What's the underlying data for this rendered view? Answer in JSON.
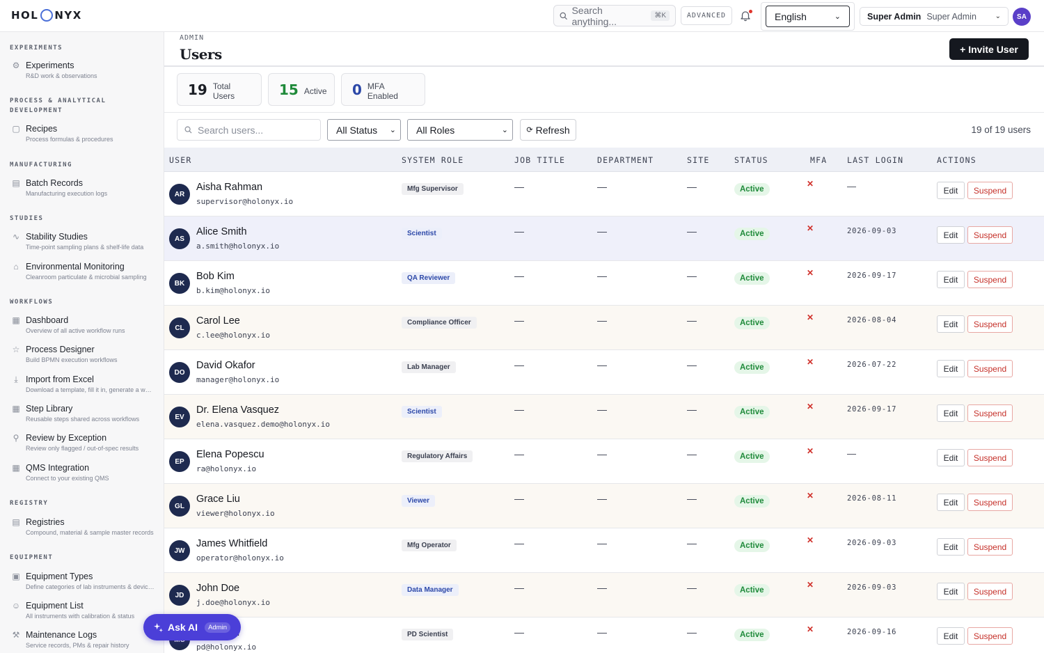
{
  "app": {
    "logo_left": "HOL",
    "logo_right": "NYX"
  },
  "header": {
    "search_placeholder": "Search anything...",
    "search_shortcut": "⌘K",
    "advanced_label": "ADVANCED",
    "language": "English",
    "user_name": "Super Admin",
    "user_role": "Super Admin",
    "avatar_initials": "SA"
  },
  "sidebar": {
    "sections": [
      {
        "title": "EXPERIMENTS",
        "items": [
          {
            "label": "Experiments",
            "desc": "R&D work & observations",
            "icon": "flask-icon"
          }
        ]
      },
      {
        "title": "PROCESS & ANALYTICAL DEVELOPMENT",
        "items": [
          {
            "label": "Recipes",
            "desc": "Process formulas & procedures",
            "icon": "document-icon"
          }
        ]
      },
      {
        "title": "MANUFACTURING",
        "items": [
          {
            "label": "Batch Records",
            "desc": "Manufacturing execution logs",
            "icon": "clipboard-icon"
          }
        ]
      },
      {
        "title": "STUDIES",
        "items": [
          {
            "label": "Stability Studies",
            "desc": "Time-point sampling plans & shelf-life data",
            "icon": "pulse-icon"
          },
          {
            "label": "Environmental Monitoring",
            "desc": "Cleanroom particulate & microbial sampling",
            "icon": "home-icon"
          }
        ]
      },
      {
        "title": "WORKFLOWS",
        "items": [
          {
            "label": "Dashboard",
            "desc": "Overview of all active workflow runs",
            "icon": "grid-icon"
          },
          {
            "label": "Process Designer",
            "desc": "Build BPMN execution workflows",
            "icon": "star-icon"
          },
          {
            "label": "Import from Excel",
            "desc": "Download a template, fill it in, generate a workflow",
            "icon": "download-icon"
          },
          {
            "label": "Step Library",
            "desc": "Reusable steps shared across workflows",
            "icon": "blocks-icon"
          },
          {
            "label": "Review by Exception",
            "desc": "Review only flagged / out-of-spec results",
            "icon": "magnifier-icon"
          },
          {
            "label": "QMS Integration",
            "desc": "Connect to your existing QMS",
            "icon": "grid-icon"
          }
        ]
      },
      {
        "title": "REGISTRY",
        "items": [
          {
            "label": "Registries",
            "desc": "Compound, material & sample master records",
            "icon": "database-icon"
          }
        ]
      },
      {
        "title": "EQUIPMENT",
        "items": [
          {
            "label": "Equipment Types",
            "desc": "Define categories of lab instruments & devices",
            "icon": "briefcase-icon"
          },
          {
            "label": "Equipment List",
            "desc": "All instruments with calibration & status",
            "icon": "person-icon"
          },
          {
            "label": "Maintenance Logs",
            "desc": "Service records, PMs & repair history",
            "icon": "wrench-icon"
          }
        ]
      }
    ]
  },
  "page": {
    "breadcrumb": "ADMIN",
    "title": "Users",
    "invite_label": "+ Invite User"
  },
  "stats": [
    {
      "value": "19",
      "label": "Total Users",
      "color": "#1a1d24"
    },
    {
      "value": "15",
      "label": "Active",
      "color": "#1f8a3a"
    },
    {
      "value": "0",
      "label": "MFA Enabled",
      "color": "#2c48a8"
    }
  ],
  "filters": {
    "search_placeholder": "Search users...",
    "status_value": "All Status",
    "roles_value": "All Roles",
    "refresh_label": "Refresh",
    "count_text": "19 of 19 users"
  },
  "table": {
    "columns": [
      "USER",
      "SYSTEM ROLE",
      "JOB TITLE",
      "DEPARTMENT",
      "SITE",
      "STATUS",
      "MFA",
      "LAST LOGIN",
      "ACTIONS"
    ],
    "rows": [
      {
        "initials": "AR",
        "name": "Aisha Rahman",
        "email": "supervisor@holonyx.io",
        "role": "Mfg Supervisor",
        "role_blue": false,
        "job": "—",
        "dept": "—",
        "site": "—",
        "status": "Active",
        "mfa": "✕",
        "last_login": "—",
        "edit": "Edit",
        "suspend": "Suspend"
      },
      {
        "initials": "AS",
        "name": "Alice Smith",
        "email": "a.smith@holonyx.io",
        "role": "Scientist",
        "role_blue": true,
        "job": "—",
        "dept": "—",
        "site": "—",
        "status": "Active",
        "mfa": "✕",
        "last_login": "2026-09-03",
        "edit": "Edit",
        "suspend": "Suspend"
      },
      {
        "initials": "BK",
        "name": "Bob Kim",
        "email": "b.kim@holonyx.io",
        "role": "QA Reviewer",
        "role_blue": true,
        "job": "—",
        "dept": "—",
        "site": "—",
        "status": "Active",
        "mfa": "✕",
        "last_login": "2026-09-17",
        "edit": "Edit",
        "suspend": "Suspend"
      },
      {
        "initials": "CL",
        "name": "Carol Lee",
        "email": "c.lee@holonyx.io",
        "role": "Compliance Officer",
        "role_blue": false,
        "job": "—",
        "dept": "—",
        "site": "—",
        "status": "Active",
        "mfa": "✕",
        "last_login": "2026-08-04",
        "edit": "Edit",
        "suspend": "Suspend"
      },
      {
        "initials": "DO",
        "name": "David Okafor",
        "email": "manager@holonyx.io",
        "role": "Lab Manager",
        "role_blue": false,
        "job": "—",
        "dept": "—",
        "site": "—",
        "status": "Active",
        "mfa": "✕",
        "last_login": "2026-07-22",
        "edit": "Edit",
        "suspend": "Suspend"
      },
      {
        "initials": "EV",
        "name": "Dr. Elena Vasquez",
        "email": "elena.vasquez.demo@holonyx.io",
        "role": "Scientist",
        "role_blue": true,
        "job": "—",
        "dept": "—",
        "site": "—",
        "status": "Active",
        "mfa": "✕",
        "last_login": "2026-09-17",
        "edit": "Edit",
        "suspend": "Suspend"
      },
      {
        "initials": "EP",
        "name": "Elena Popescu",
        "email": "ra@holonyx.io",
        "role": "Regulatory Affairs",
        "role_blue": false,
        "job": "—",
        "dept": "—",
        "site": "—",
        "status": "Active",
        "mfa": "✕",
        "last_login": "—",
        "edit": "Edit",
        "suspend": "Suspend"
      },
      {
        "initials": "GL",
        "name": "Grace Liu",
        "email": "viewer@holonyx.io",
        "role": "Viewer",
        "role_blue": true,
        "job": "—",
        "dept": "—",
        "site": "—",
        "status": "Active",
        "mfa": "✕",
        "last_login": "2026-08-11",
        "edit": "Edit",
        "suspend": "Suspend"
      },
      {
        "initials": "JW",
        "name": "James Whitfield",
        "email": "operator@holonyx.io",
        "role": "Mfg Operator",
        "role_blue": false,
        "job": "—",
        "dept": "—",
        "site": "—",
        "status": "Active",
        "mfa": "✕",
        "last_login": "2026-09-03",
        "edit": "Edit",
        "suspend": "Suspend"
      },
      {
        "initials": "JD",
        "name": "John Doe",
        "email": "j.doe@holonyx.io",
        "role": "Data Manager",
        "role_blue": true,
        "job": "—",
        "dept": "—",
        "site": "—",
        "status": "Active",
        "mfa": "✕",
        "last_login": "2026-09-03",
        "edit": "Edit",
        "suspend": "Suspend"
      },
      {
        "initials": "MC",
        "name": "Mei Chen",
        "email": "pd@holonyx.io",
        "role": "PD Scientist",
        "role_blue": false,
        "job": "—",
        "dept": "—",
        "site": "—",
        "status": "Active",
        "mfa": "✕",
        "last_login": "2026-09-16",
        "edit": "Edit",
        "suspend": "Suspend"
      }
    ]
  },
  "ask_ai": {
    "label": "Ask AI",
    "badge": "Admin"
  },
  "colors": {
    "accent": "#4b3fd8",
    "active_green": "#1f8a3a",
    "danger": "#c53029"
  }
}
